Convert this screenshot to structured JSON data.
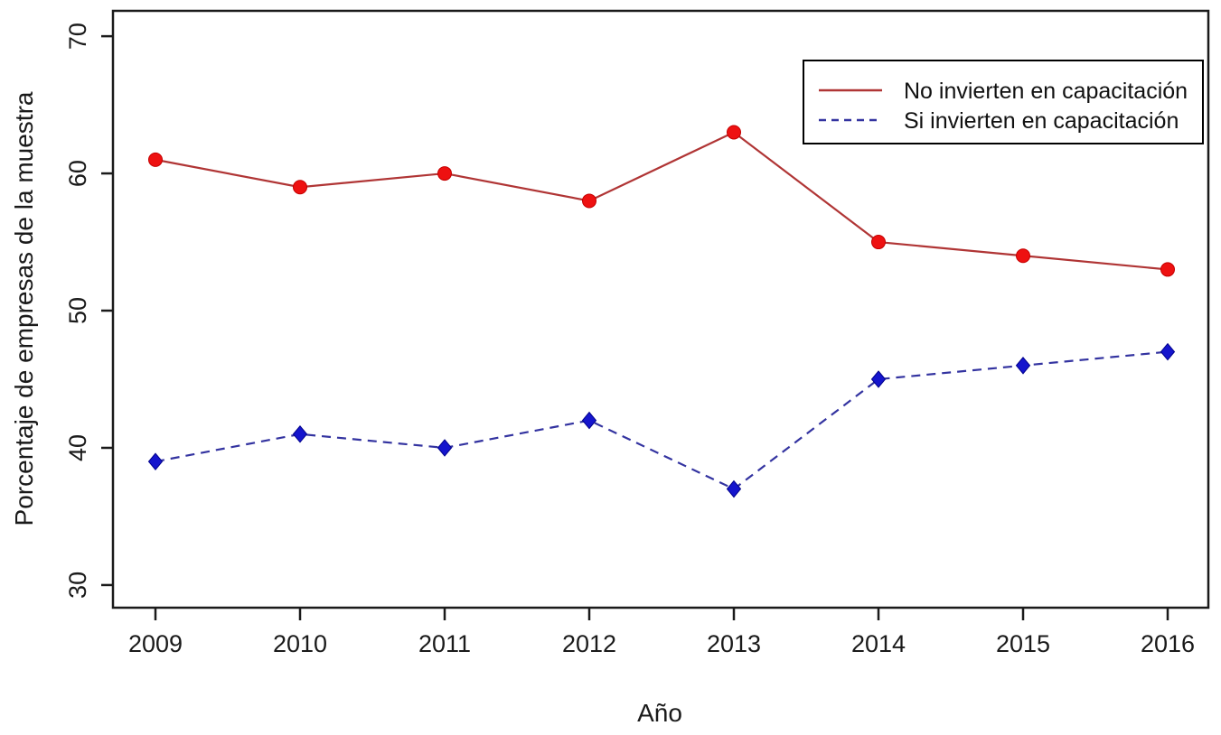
{
  "chart_data": {
    "type": "line",
    "title": "",
    "xlabel": "Año",
    "ylabel": "Porcentaje de empresas de la muestra",
    "categories": [
      "2009",
      "2010",
      "2011",
      "2012",
      "2013",
      "2014",
      "2015",
      "2016"
    ],
    "yticks": [
      30,
      40,
      50,
      60,
      70
    ],
    "ylim": [
      28.35,
      71.85
    ],
    "grid": false,
    "legend_position": "top-right",
    "axis_color": "#1a1a1a",
    "series": [
      {
        "name": "No invierten en capacitación",
        "key": "no-invierten",
        "line_color": "#b03535",
        "marker_color": "#ee1111",
        "marker_edge": "#c40000",
        "line_style": "solid",
        "marker": "circle",
        "values": [
          61,
          59,
          60,
          58,
          63,
          55,
          54,
          53
        ]
      },
      {
        "name": "Si invierten en capacitación",
        "key": "si-invierten",
        "line_color": "#3333a0",
        "marker_color": "#1515cd",
        "marker_edge": "#00008b",
        "line_style": "dashed",
        "marker": "diamond",
        "values": [
          39,
          41,
          40,
          42,
          37,
          45,
          46,
          47
        ]
      }
    ]
  }
}
